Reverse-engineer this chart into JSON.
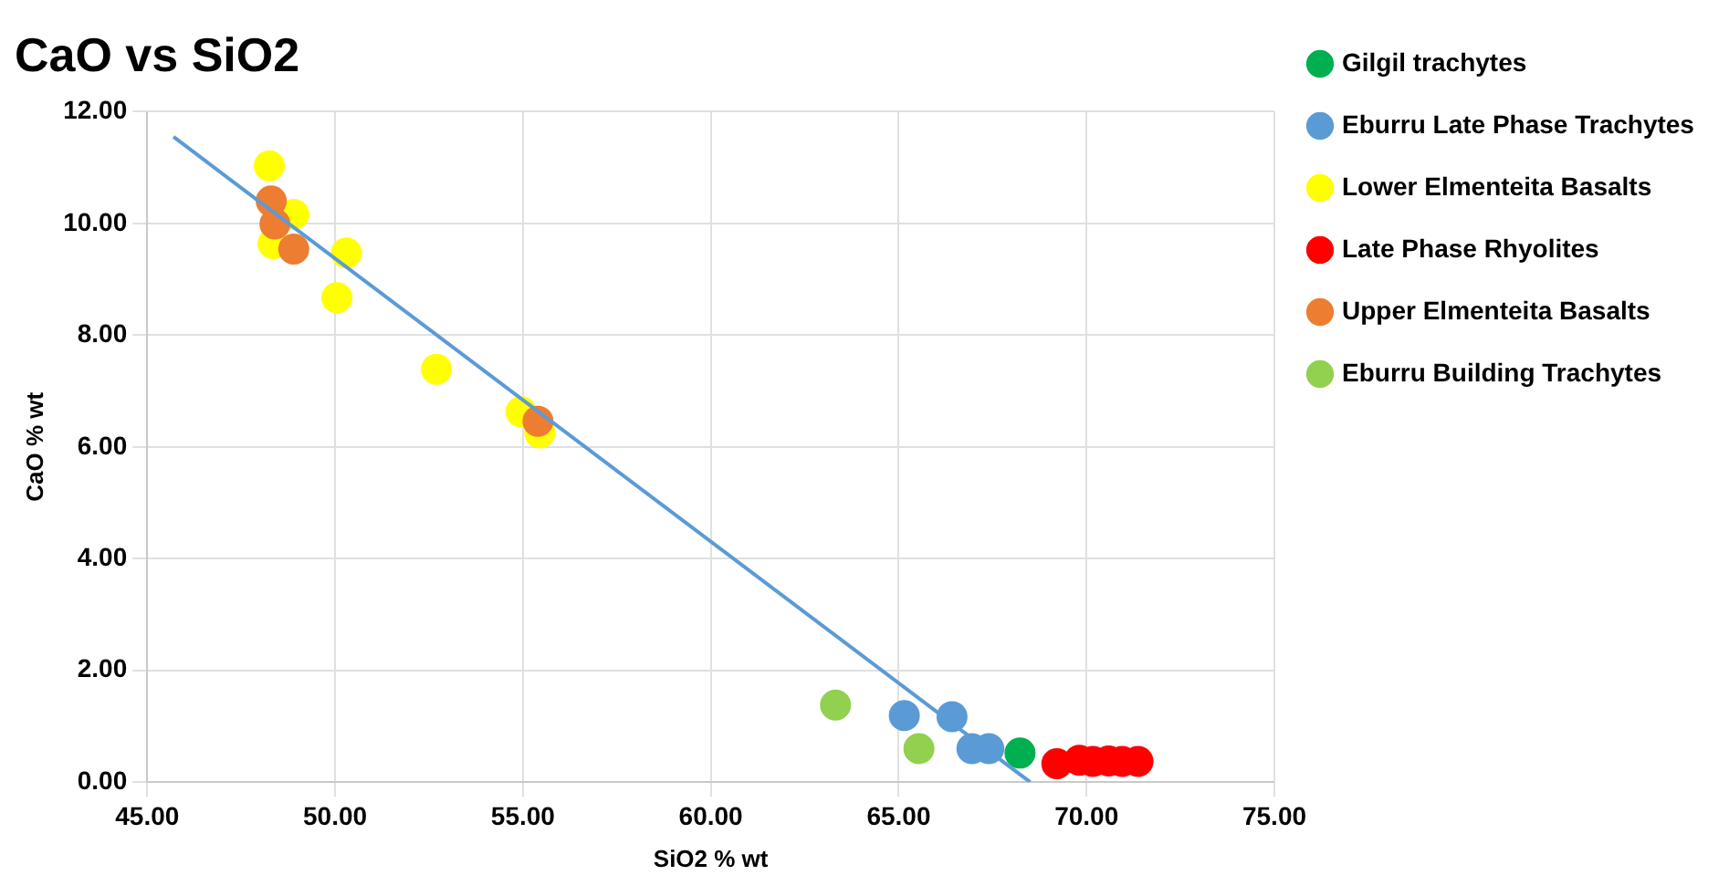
{
  "chart_data": {
    "type": "scatter",
    "title": "CaO vs SiO2",
    "xlabel": "SiO2 % wt",
    "ylabel": "CaO % wt",
    "xlim": [
      45,
      75
    ],
    "xticks": [
      {
        "value": 45,
        "label": "45.00"
      },
      {
        "value": 50,
        "label": "50.00"
      },
      {
        "value": 55,
        "label": "55.00"
      },
      {
        "value": 60,
        "label": "60.00"
      },
      {
        "value": 65,
        "label": "65.00"
      },
      {
        "value": 70,
        "label": "70.00"
      },
      {
        "value": 75,
        "label": "75.00"
      }
    ],
    "ylim": [
      0,
      12
    ],
    "yticks": [
      {
        "value": 0,
        "label": "0.00"
      },
      {
        "value": 2,
        "label": "2.00"
      },
      {
        "value": 4,
        "label": "4.00"
      },
      {
        "value": 6,
        "label": "6.00"
      },
      {
        "value": 8,
        "label": "8.00"
      },
      {
        "value": 10,
        "label": "10.00"
      },
      {
        "value": 12,
        "label": "12.00"
      }
    ],
    "grid": true,
    "legend": "right",
    "marker": "circle",
    "series": [
      {
        "name": "Gilgil trachytes",
        "color": "#00b050",
        "x": [
          68.23
        ],
        "values": [
          0.52
        ]
      },
      {
        "name": "Eburru Late Phase Trachytes",
        "color": "#5b9bd5",
        "x": [
          65.15,
          66.42,
          66.95,
          67.4
        ],
        "values": [
          1.19,
          1.17,
          0.6,
          0.6
        ]
      },
      {
        "name": "Lower Elmenteita Basalts",
        "color": "#ffff00",
        "x": [
          48.25,
          48.9,
          48.35,
          50.3,
          50.05,
          52.7,
          54.95,
          55.45
        ],
        "values": [
          11.03,
          10.16,
          9.64,
          9.47,
          8.67,
          7.39,
          6.63,
          6.25
        ]
      },
      {
        "name": "Late Phase Rhyolites",
        "color": "#ff0000",
        "x": [
          69.21,
          69.81,
          70.17,
          70.59,
          70.95,
          71.37
        ],
        "values": [
          0.33,
          0.39,
          0.37,
          0.38,
          0.37,
          0.37
        ]
      },
      {
        "name": "Upper Elmenteita Basalts",
        "color": "#ed7d31",
        "x": [
          48.3,
          48.4,
          48.9,
          55.4
        ],
        "values": [
          10.4,
          9.99,
          9.54,
          6.46
        ]
      },
      {
        "name": "Eburru Building Trachytes",
        "color": "#92d050",
        "x": [
          63.32,
          65.54
        ],
        "values": [
          1.38,
          0.6
        ]
      },
      {
        "type": "line",
        "marker": "none",
        "color": "#5b9bd5",
        "x": [
          45.7,
          68.5
        ],
        "values": [
          11.55,
          0
        ]
      }
    ]
  }
}
